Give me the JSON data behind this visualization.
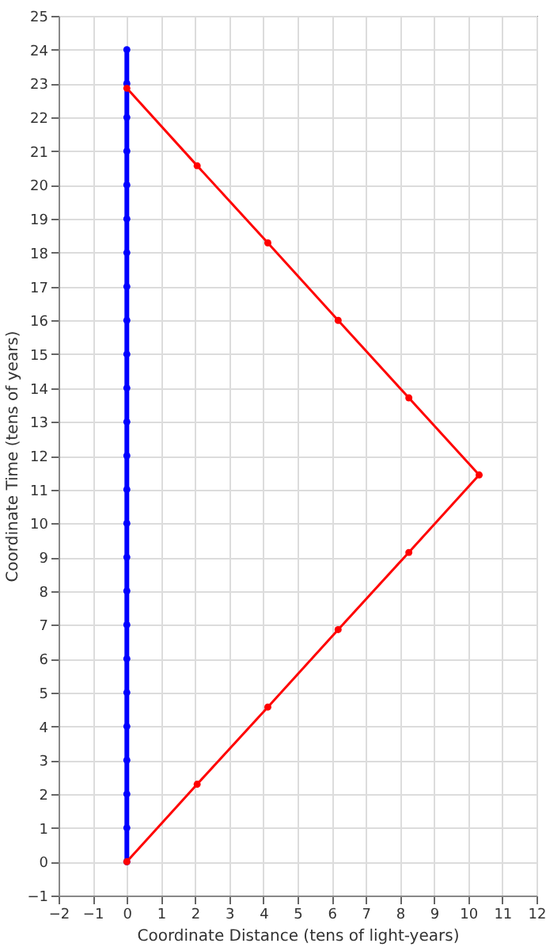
{
  "chart_data": {
    "type": "line",
    "xlabel": "Coordinate Distance (tens of light-years)",
    "ylabel": "Coordinate Time (tens of years)",
    "xlim": [
      -2,
      12
    ],
    "xticks": [
      -2,
      -1,
      0,
      1,
      2,
      3,
      4,
      5,
      6,
      7,
      8,
      9,
      10,
      11,
      12
    ],
    "ylim": [
      -1,
      25
    ],
    "yticks": [
      -1,
      0,
      1,
      2,
      3,
      4,
      5,
      6,
      7,
      8,
      9,
      10,
      11,
      12,
      13,
      14,
      15,
      16,
      17,
      18,
      19,
      20,
      21,
      22,
      23,
      24,
      25
    ],
    "grid": true,
    "marker": "circle",
    "line_style": "solid",
    "series": [
      {
        "color": "#0000ff",
        "x": [
          0,
          0,
          0,
          0,
          0,
          0,
          0,
          0,
          0,
          0,
          0,
          0,
          0,
          0,
          0,
          0,
          0,
          0,
          0,
          0,
          0,
          0,
          0,
          0,
          0
        ],
        "values": [
          0,
          1,
          2,
          3,
          4,
          5,
          6,
          7,
          8,
          9,
          10,
          11,
          12,
          13,
          14,
          15,
          16,
          17,
          18,
          19,
          20,
          21,
          22,
          23,
          24
        ]
      },
      {
        "color": "#ff0000",
        "x": [
          0,
          2.06,
          4.13,
          6.19,
          8.26,
          10.32,
          8.26,
          6.19,
          4.13,
          2.06,
          0
        ],
        "values": [
          0,
          2.29,
          4.57,
          6.86,
          9.14,
          11.43,
          13.71,
          16.0,
          18.29,
          20.57,
          22.86
        ]
      }
    ]
  }
}
